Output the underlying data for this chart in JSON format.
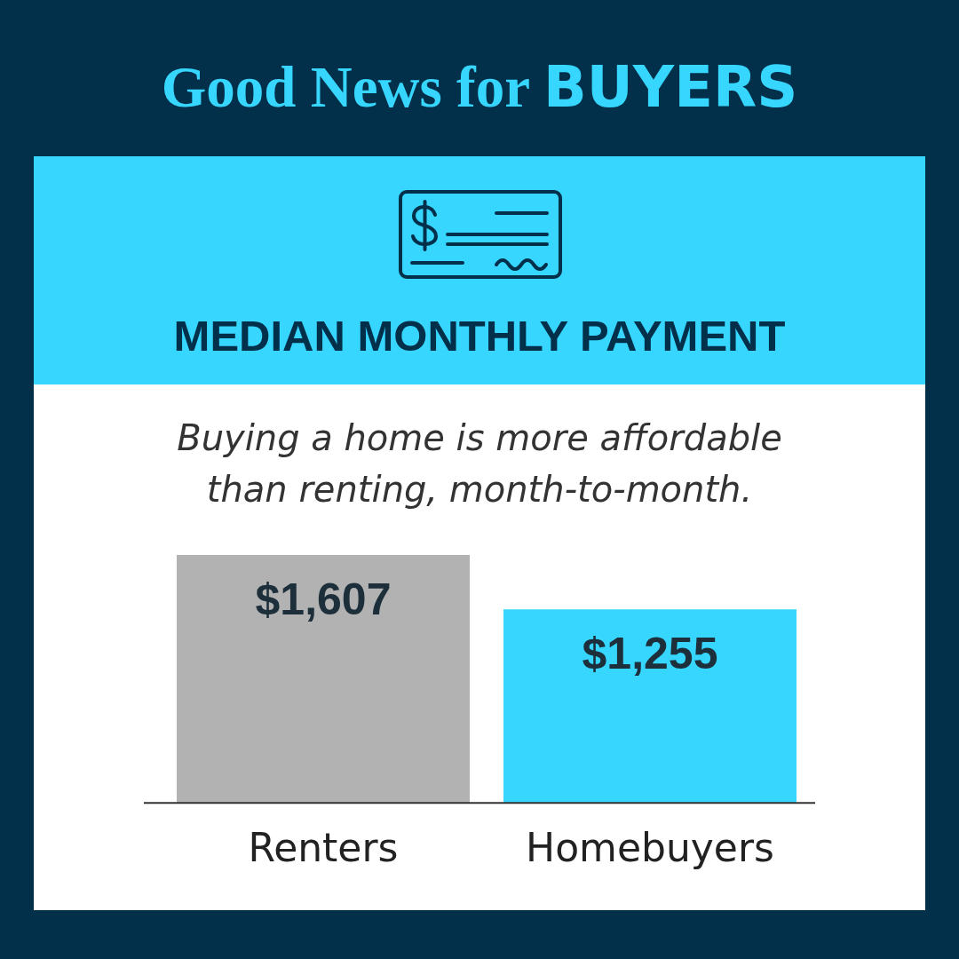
{
  "chart_data": {
    "type": "bar",
    "title": "Good News for BUYERS",
    "subtitle": "MEDIAN MONTHLY PAYMENT",
    "annotations": [
      "Buying a home is more affordable than renting, month-to-month."
    ],
    "categories": [
      "Renters",
      "Homebuyers"
    ],
    "values": [
      1607,
      1255
    ],
    "colors": [
      "#b2b2b2",
      "#36d6fe"
    ],
    "value_labels": [
      "$1,607",
      "$1,255"
    ]
  }
}
